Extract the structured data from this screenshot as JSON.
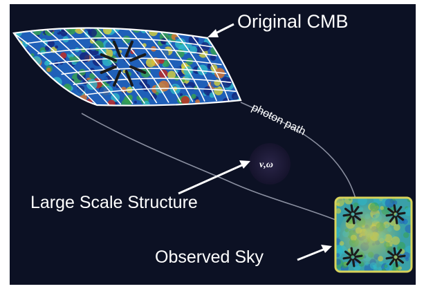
{
  "labels": {
    "original_cmb": "Original CMB",
    "photon_path": "photon path",
    "nu_omega": "ν,ω",
    "large_scale_structure": "Large Scale Structure",
    "observed_sky": "Observed Sky"
  },
  "colors": {
    "background": "#0c1124",
    "border_white": "#ffffff",
    "cmb_deep_blue": "#13237a",
    "cmb_blue": "#1f5fb8",
    "cmb_cyan": "#2fb8c8",
    "cmb_green": "#37a24e",
    "cmb_yellow": "#d9d23a",
    "cmb_orange": "#e0762a",
    "cmb_red": "#c8281e",
    "sky_border": "#d8d35a",
    "lens_circle": "#1b1836",
    "photon_path_line": "#8a8fa0",
    "cross_marks": "#1a1a1a"
  },
  "icons": {
    "arrow": "arrow-icon",
    "cross_pattern": "radial-cross-icon"
  }
}
